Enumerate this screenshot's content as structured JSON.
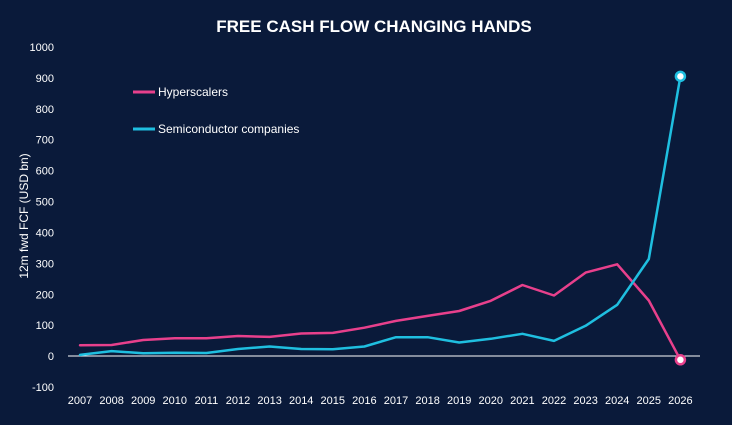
{
  "chart_data": {
    "type": "line",
    "title": "FREE CASH FLOW CHANGING HANDS",
    "ylabel": "12m fwd FCF (USD bn)",
    "xlabel": "",
    "ylim": [
      -100,
      1000
    ],
    "yticks": [
      1000,
      900,
      800,
      700,
      600,
      500,
      400,
      300,
      200,
      100,
      0,
      -100
    ],
    "categories": [
      "2007",
      "2008",
      "2009",
      "2010",
      "2011",
      "2012",
      "2013",
      "2014",
      "2015",
      "2016",
      "2017",
      "2018",
      "2019",
      "2020",
      "2021",
      "2022",
      "2023",
      "2024",
      "2025",
      "2026"
    ],
    "series": [
      {
        "name": "Hyperscalers",
        "color": "#e8408c",
        "values": [
          35,
          36,
          52,
          58,
          58,
          65,
          62,
          73,
          75,
          92,
          114,
          130,
          146,
          179,
          230,
          196,
          270,
          297,
          180,
          -12
        ]
      },
      {
        "name": "Semiconductor companies",
        "color": "#1fbfe0",
        "values": [
          4,
          16,
          9,
          11,
          10,
          23,
          31,
          23,
          22,
          31,
          61,
          61,
          44,
          56,
          72,
          49,
          98,
          166,
          314,
          905
        ]
      }
    ],
    "legend_position": "top-left",
    "grid": false
  }
}
